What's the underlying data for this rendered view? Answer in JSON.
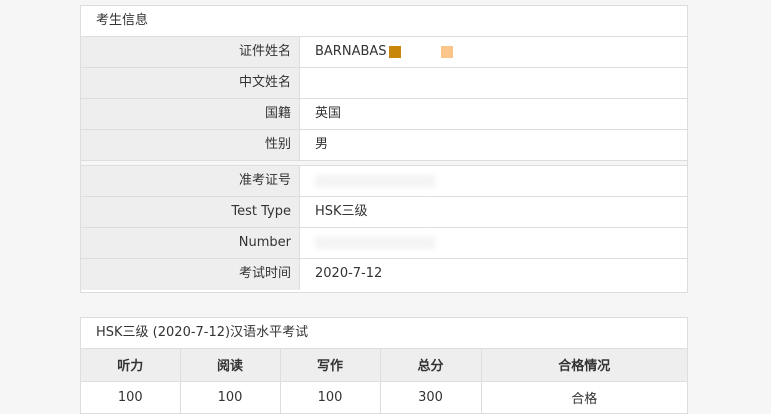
{
  "candidate": {
    "title": "考生信息",
    "rows": [
      {
        "label": "证件姓名",
        "value": "BARNABAS"
      },
      {
        "label": "中文姓名",
        "value": ""
      },
      {
        "label": "国籍",
        "value": "英国"
      },
      {
        "label": "性别",
        "value": "男"
      }
    ],
    "rows2": [
      {
        "label": "准考证号",
        "value": ""
      },
      {
        "label": "Test Type",
        "value": "HSK三级"
      },
      {
        "label": "Number",
        "value": ""
      },
      {
        "label": "考试时间",
        "value": "2020-7-12"
      }
    ],
    "redaction_colors": [
      "#c8860a",
      "#fcc68a"
    ]
  },
  "scores": {
    "title": "HSK三级 (2020-7-12)汉语水平考试",
    "headers": [
      "听力",
      "阅读",
      "写作",
      "总分",
      "合格情况"
    ],
    "values": [
      "100",
      "100",
      "100",
      "300",
      "合格"
    ]
  }
}
